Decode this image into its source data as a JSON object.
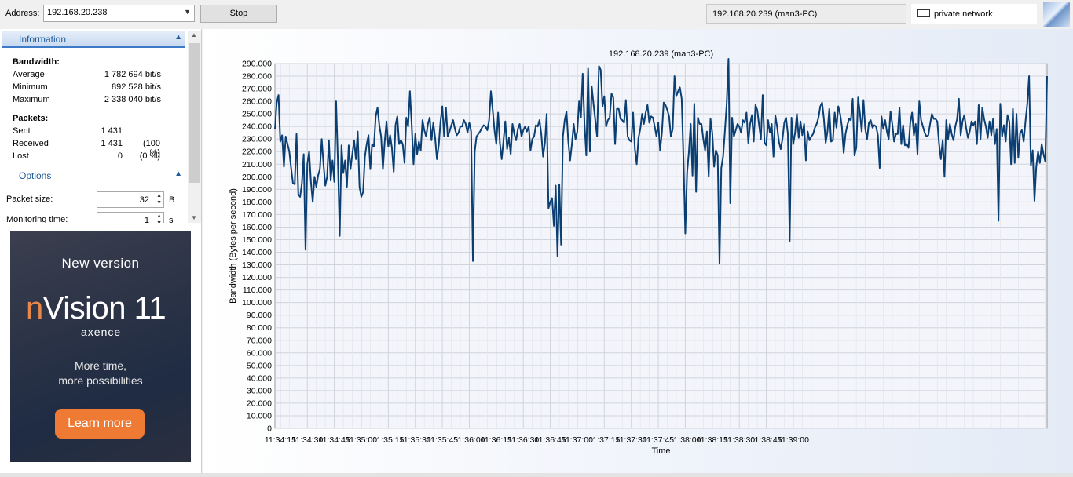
{
  "toolbar": {
    "address_label": "Address:",
    "address_value": "192.168.20.238",
    "stop_label": "Stop",
    "host_display": "192.168.20.239 (man3-PC)",
    "network_label": "private network",
    "network_icon": "network-card-icon"
  },
  "info_panel": {
    "title": "Information",
    "bandwidth_title": "Bandwidth:",
    "bandwidth": [
      {
        "label": "Average",
        "value": "1 782 694 bit/s"
      },
      {
        "label": "Minimum",
        "value": "892 528 bit/s"
      },
      {
        "label": "Maximum",
        "value": "2 338 040 bit/s"
      }
    ],
    "packets_title": "Packets:",
    "packets": [
      {
        "label": "Sent",
        "count": "1 431",
        "pct": ""
      },
      {
        "label": "Received",
        "count": "1 431",
        "pct": "(100 %)"
      },
      {
        "label": "Lost",
        "count": "0",
        "pct": "(0 %)"
      }
    ]
  },
  "options_panel": {
    "title": "Options",
    "packet_size_label": "Packet size:",
    "packet_size_value": "32",
    "packet_size_unit": "B",
    "monitoring_time_label": "Monitoring time:",
    "monitoring_time_value": "1",
    "monitoring_time_unit": "s"
  },
  "ad": {
    "headline": "New version",
    "brand_prefix": "n",
    "brand_rest": "Vision 11",
    "company": "axence",
    "tagline_1": "More time,",
    "tagline_2": "more possibilities",
    "button_label": "Learn more",
    "accent_color": "#ee7a33"
  },
  "chart_data": {
    "type": "line",
    "title": "192.168.20.239 (man3-PC)",
    "xlabel": "Time",
    "ylabel": "Bandwidth (Bytes per second)",
    "ylim": [
      0,
      290000
    ],
    "y_ticks": [
      "0",
      "10.000",
      "20.000",
      "30.000",
      "40.000",
      "50.000",
      "60.000",
      "70.000",
      "80.000",
      "90.000",
      "100.000",
      "110.000",
      "120.000",
      "130.000",
      "140.000",
      "150.000",
      "160.000",
      "170.000",
      "180.000",
      "190.000",
      "200.000",
      "210.000",
      "220.000",
      "230.000",
      "240.000",
      "250.000",
      "260.000",
      "270.000",
      "280.000",
      "290.000"
    ],
    "x_ticks": [
      "11:34:15",
      "11:34:30",
      "11:34:45",
      "11:35:00",
      "11:35:15",
      "11:35:30",
      "11:35:45",
      "11:36:00",
      "11:36:15",
      "11:36:30",
      "11:36:45",
      "11:37:00",
      "11:37:15",
      "11:37:30",
      "11:37:45",
      "11:38:00",
      "11:38:15",
      "11:38:30",
      "11:38:45",
      "11:39:00"
    ],
    "x_start_label": "11:34:12",
    "x_step_seconds": 1,
    "grid": true,
    "line_color": "#0b3f73",
    "series": [
      {
        "values": [
          238000,
          259000,
          265000,
          228000,
          233000,
          208000,
          232000,
          226000,
          220000,
          207000,
          195000,
          194000,
          234000,
          186000,
          184000,
          195000,
          218000,
          142000,
          210000,
          220000,
          196000,
          180000,
          200000,
          192000,
          201000,
          206000,
          230000,
          210000,
          193000,
          200000,
          229000,
          197000,
          213000,
          196000,
          260000,
          212000,
          153000,
          225000,
          203000,
          213000,
          192000,
          225000,
          206000,
          218000,
          229000,
          214000,
          236000,
          192000,
          184000,
          188000,
          216000,
          226000,
          233000,
          206000,
          226000,
          224000,
          248000,
          255000,
          241000,
          232000,
          206000,
          228000,
          244000,
          224000,
          233000,
          223000,
          204000,
          241000,
          248000,
          226000,
          229000,
          226000,
          211000,
          247000,
          240000,
          268000,
          241000,
          210000,
          234000,
          218000,
          228000,
          221000,
          245000,
          237000,
          232000,
          242000,
          247000,
          229000,
          243000,
          231000,
          214000,
          225000,
          244000,
          256000,
          232000,
          255000,
          232000,
          236000,
          241000,
          245000,
          238000,
          233000,
          235000,
          240000,
          240000,
          245000,
          242000,
          235000,
          243000,
          236000,
          133000,
          220000,
          232000,
          234000,
          236000,
          239000,
          241000,
          240000,
          237000,
          245000,
          268000,
          253000,
          237000,
          226000,
          251000,
          227000,
          214000,
          229000,
          244000,
          222000,
          231000,
          218000,
          242000,
          234000,
          229000,
          238000,
          242000,
          232000,
          237000,
          240000,
          236000,
          240000,
          221000,
          230000,
          232000,
          241000,
          240000,
          245000,
          234000,
          216000,
          227000,
          250000,
          175000,
          180000,
          183000,
          161000,
          193000,
          137000,
          194000,
          146000,
          232000,
          245000,
          252000,
          228000,
          213000,
          226000,
          242000,
          230000,
          236000,
          260000,
          247000,
          282000,
          242000,
          217000,
          286000,
          220000,
          272000,
          258000,
          245000,
          232000,
          288000,
          285000,
          256000,
          264000,
          240000,
          245000,
          247000,
          266000,
          263000,
          226000,
          254000,
          254000,
          246000,
          245000,
          243000,
          261000,
          232000,
          229000,
          228000,
          251000,
          222000,
          210000,
          231000,
          238000,
          250000,
          242000,
          251000,
          257000,
          243000,
          248000,
          247000,
          240000,
          232000,
          243000,
          221000,
          235000,
          259000,
          257000,
          253000,
          248000,
          232000,
          238000,
          280000,
          264000,
          268000,
          271000,
          262000,
          214000,
          155000,
          203000,
          220000,
          242000,
          201000,
          258000,
          188000,
          247000,
          242000,
          242000,
          230000,
          221000,
          236000,
          200000,
          246000,
          235000,
          208000,
          221000,
          217000,
          131000,
          207000,
          216000,
          236000,
          258000,
          296000,
          179000,
          247000,
          232000,
          237000,
          242000,
          240000,
          235000,
          245000,
          243000,
          251000,
          227000,
          242000,
          249000,
          228000,
          257000,
          253000,
          241000,
          230000,
          265000,
          227000,
          225000,
          245000,
          235000,
          242000,
          216000,
          249000,
          240000,
          228000,
          222000,
          230000,
          243000,
          247000,
          234000,
          149000,
          247000,
          226000,
          235000,
          250000,
          231000,
          244000,
          233000,
          242000,
          213000,
          236000,
          229000,
          232000,
          234000,
          239000,
          242000,
          247000,
          256000,
          259000,
          246000,
          227000,
          236000,
          254000,
          228000,
          229000,
          251000,
          239000,
          256000,
          250000,
          240000,
          219000,
          234000,
          241000,
          246000,
          245000,
          262000,
          217000,
          223000,
          263000,
          251000,
          236000,
          261000,
          238000,
          230000,
          243000,
          245000,
          239000,
          241000,
          240000,
          233000,
          207000,
          248000,
          238000,
          245000,
          236000,
          230000,
          252000,
          242000,
          228000,
          234000,
          234000,
          255000,
          226000,
          241000,
          225000,
          226000,
          223000,
          243000,
          251000,
          233000,
          242000,
          218000,
          260000,
          245000,
          240000,
          235000,
          232000,
          233000,
          242000,
          250000,
          246000,
          246000,
          244000,
          226000,
          214000,
          229000,
          200000,
          245000,
          230000,
          242000,
          234000,
          229000,
          240000,
          246000,
          262000,
          233000,
          244000,
          249000,
          239000,
          231000,
          236000,
          244000,
          241000,
          244000,
          226000,
          257000,
          230000,
          255000,
          246000,
          240000,
          231000,
          244000,
          233000,
          246000,
          226000,
          238000,
          165000,
          258000,
          232000,
          241000,
          228000,
          249000,
          244000,
          210000,
          254000,
          211000,
          250000,
          215000,
          235000,
          237000,
          228000,
          244000,
          258000,
          280000,
          209000,
          221000,
          181000,
          208000,
          220000,
          211000,
          226000,
          218000,
          212000,
          280000
        ]
      }
    ]
  }
}
